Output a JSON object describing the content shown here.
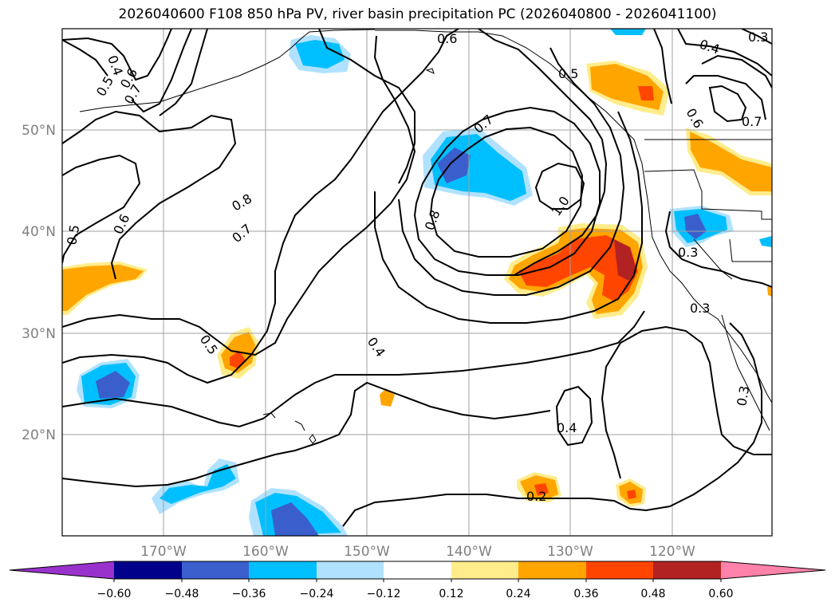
{
  "title": "2026040600 F108 850 hPa PV, river basin precipitation PC (2026040800 - 2026041100)",
  "axes": {
    "lat_labels": [
      "50°N",
      "40°N",
      "30°N",
      "20°N"
    ],
    "lon_labels": [
      "170°W",
      "160°W",
      "150°W",
      "140°W",
      "130°W",
      "120°W"
    ],
    "tick_color": "#808080"
  },
  "colorbar": {
    "ticks": [
      "−0.60",
      "−0.48",
      "−0.36",
      "−0.24",
      "−0.12",
      "0.12",
      "0.24",
      "0.36",
      "0.48",
      "0.60"
    ],
    "colors": [
      "#9932cc",
      "#00008b",
      "#3a5fcd",
      "#00bfff",
      "#b0e2ff",
      "#ffffff",
      "#ffec8b",
      "#ffa500",
      "#ff4500",
      "#b22222",
      "#ff82ab"
    ]
  },
  "contour_labels": [
    {
      "text": "0.6"
    },
    {
      "text": "0.4"
    },
    {
      "text": "0.3"
    },
    {
      "text": "0.5"
    },
    {
      "text": "0.6"
    },
    {
      "text": "0.7"
    },
    {
      "text": "0.4"
    },
    {
      "text": "0.5"
    },
    {
      "text": "0.6"
    },
    {
      "text": "0.7"
    },
    {
      "text": "0.7"
    },
    {
      "text": "0.8"
    },
    {
      "text": "1.0"
    },
    {
      "text": "0.8"
    },
    {
      "text": "0.7"
    },
    {
      "text": "0.6"
    },
    {
      "text": "0.5"
    },
    {
      "text": "0.3"
    },
    {
      "text": "0.3"
    },
    {
      "text": "0.5"
    },
    {
      "text": "0.4"
    },
    {
      "text": "0.4"
    },
    {
      "text": "0.3"
    },
    {
      "text": "0.2"
    }
  ]
}
